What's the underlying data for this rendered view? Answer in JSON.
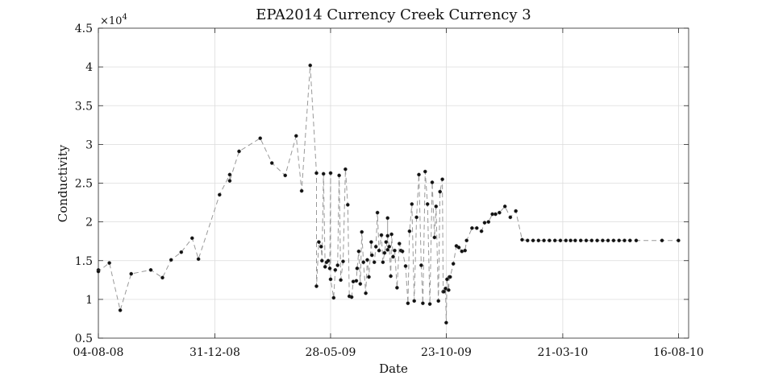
{
  "chart_data": {
    "type": "line",
    "title": "EPA2014 Currency Creek Currency 3",
    "xlabel": "Date",
    "ylabel": "Conductivity",
    "y_multiplier_label": "×10",
    "y_multiplier_exp": "4",
    "xlim": [
      "2008-08-04",
      "2010-08-29"
    ],
    "ylim": [
      0.5,
      4.5
    ],
    "y_ticks": [
      0.5,
      1,
      1.5,
      2,
      2.5,
      3,
      3.5,
      4,
      4.5
    ],
    "y_tick_labels": [
      "0.5",
      "1",
      "1.5",
      "2",
      "2.5",
      "3",
      "3.5",
      "4",
      "4.5"
    ],
    "x_ticks": [
      "2008-08-04",
      "2008-12-31",
      "2009-05-28",
      "2009-10-23",
      "2010-03-21",
      "2010-08-16"
    ],
    "x_tick_labels": [
      "04-08-08",
      "31-12-08",
      "28-05-09",
      "23-10-09",
      "21-03-10",
      "16-08-10"
    ],
    "grid": true,
    "line_style": "dashed",
    "series_color": "#111111",
    "line_color": "#999999",
    "series": [
      {
        "x": [
          "2008-08-04",
          "2008-08-04",
          "2008-08-18",
          "2008-09-01",
          "2008-09-15",
          "2008-10-10",
          "2008-10-25",
          "2008-11-05",
          "2008-11-18",
          "2008-12-02",
          "2008-12-10",
          "2009-01-06",
          "2009-01-19",
          "2009-01-19",
          "2009-01-31",
          "2009-02-27",
          "2009-03-14",
          "2009-03-31",
          "2009-04-14",
          "2009-04-21",
          "2009-05-02",
          "2009-05-10",
          "2009-05-10",
          "2009-05-13",
          "2009-05-16",
          "2009-05-17",
          "2009-05-19",
          "2009-05-21",
          "2009-05-23",
          "2009-05-25",
          "2009-05-27",
          "2009-05-28",
          "2009-05-28",
          "2009-06-01",
          "2009-06-03",
          "2009-06-06",
          "2009-06-08",
          "2009-06-10",
          "2009-06-13",
          "2009-06-16",
          "2009-06-19",
          "2009-06-21",
          "2009-06-24",
          "2009-06-26",
          "2009-06-30",
          "2009-07-01",
          "2009-07-03",
          "2009-07-05",
          "2009-07-07",
          "2009-07-09",
          "2009-07-12",
          "2009-07-14",
          "2009-07-16",
          "2009-07-19",
          "2009-07-20",
          "2009-07-23",
          "2009-07-25",
          "2009-07-27",
          "2009-07-29",
          "2009-08-01",
          "2009-08-03",
          "2009-08-05",
          "2009-08-07",
          "2009-08-09",
          "2009-08-09",
          "2009-08-09",
          "2009-08-11",
          "2009-08-13",
          "2009-08-14",
          "2009-08-16",
          "2009-08-18",
          "2009-08-21",
          "2009-08-24",
          "2009-08-26",
          "2009-08-28",
          "2009-09-01",
          "2009-09-04",
          "2009-09-06",
          "2009-09-09",
          "2009-09-12",
          "2009-09-15",
          "2009-09-18",
          "2009-09-21",
          "2009-09-23",
          "2009-09-26",
          "2009-09-29",
          "2009-10-02",
          "2009-10-05",
          "2009-10-08",
          "2009-10-10",
          "2009-10-13",
          "2009-10-15",
          "2009-10-18",
          "2009-10-19",
          "2009-10-20",
          "2009-10-22",
          "2009-10-23",
          "2009-10-24",
          "2009-10-26",
          "2009-10-27",
          "2009-10-28",
          "2009-11-01",
          "2009-11-05",
          "2009-11-08",
          "2009-11-12",
          "2009-11-16",
          "2009-11-18",
          "2009-11-25",
          "2009-12-01",
          "2009-12-07",
          "2009-12-11",
          "2009-12-16",
          "2009-12-21",
          "2009-12-25",
          "2009-12-30",
          "2010-01-06",
          "2010-01-13",
          "2010-01-20",
          "2010-01-28",
          "2010-02-04",
          "2010-02-11",
          "2010-02-18",
          "2010-02-25",
          "2010-03-04",
          "2010-03-11",
          "2010-03-18",
          "2010-03-25",
          "2010-03-31",
          "2010-04-06",
          "2010-04-13",
          "2010-04-20",
          "2010-04-27",
          "2010-05-04",
          "2010-05-11",
          "2010-05-18",
          "2010-05-25",
          "2010-06-01",
          "2010-06-08",
          "2010-06-15",
          "2010-06-23",
          "2010-07-26",
          "2010-08-16"
        ],
        "y": [
          1.38,
          1.36,
          1.47,
          0.86,
          1.33,
          1.38,
          1.28,
          1.51,
          1.61,
          1.79,
          1.52,
          2.35,
          2.61,
          2.53,
          2.91,
          3.08,
          2.76,
          2.6,
          3.11,
          2.4,
          4.02,
          2.63,
          1.17,
          1.74,
          1.68,
          1.5,
          2.62,
          1.42,
          1.48,
          1.5,
          1.4,
          2.63,
          1.26,
          1.02,
          1.38,
          1.44,
          2.6,
          1.25,
          1.49,
          2.68,
          2.22,
          1.04,
          1.03,
          1.23,
          1.24,
          1.4,
          1.62,
          1.2,
          1.87,
          1.48,
          1.08,
          1.51,
          1.29,
          1.74,
          1.57,
          1.48,
          1.68,
          2.12,
          1.63,
          1.83,
          1.48,
          1.6,
          1.74,
          1.64,
          2.05,
          1.82,
          1.68,
          1.3,
          1.84,
          1.55,
          1.63,
          1.15,
          1.72,
          1.63,
          1.62,
          1.43,
          0.95,
          1.88,
          2.23,
          0.98,
          2.06,
          2.61,
          1.44,
          0.95,
          2.65,
          2.23,
          0.94,
          2.51,
          1.8,
          2.2,
          0.98,
          2.39,
          2.55,
          1.1,
          1.1,
          1.14,
          0.7,
          1.26,
          1.12,
          1.29,
          1.29,
          1.46,
          1.69,
          1.67,
          1.62,
          1.63,
          1.76,
          1.92,
          1.92,
          1.88,
          1.99,
          2.0,
          2.1,
          2.1,
          2.12,
          2.2,
          2.06,
          2.14,
          1.77,
          1.76,
          1.76,
          1.76,
          1.76,
          1.76,
          1.76,
          1.76,
          1.76,
          1.76,
          1.76,
          1.76,
          1.76,
          1.76,
          1.76,
          1.76,
          1.76,
          1.76,
          1.76,
          1.76,
          1.76,
          1.76,
          1.76,
          1.76
        ]
      }
    ]
  }
}
